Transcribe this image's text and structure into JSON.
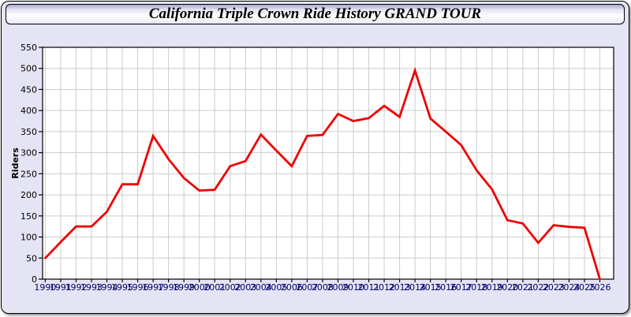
{
  "window": {
    "title": "California Triple Crown Ride History GRAND TOUR"
  },
  "chart_data": {
    "type": "line",
    "title": "California Triple Crown Ride History GRAND TOUR",
    "xlabel": "",
    "ylabel": "Riders",
    "ylim": [
      0,
      550
    ],
    "ytick_interval": 50,
    "grid": true,
    "legend_position": "none",
    "x": [
      1990,
      1991,
      1992,
      1993,
      1994,
      1995,
      1996,
      1997,
      1998,
      1999,
      2000,
      2001,
      2002,
      2003,
      2004,
      2005,
      2006,
      2007,
      2008,
      2009,
      2010,
      2011,
      2012,
      2013,
      2014,
      2015,
      2016,
      2017,
      2018,
      2019,
      2020,
      2021,
      2022,
      2023,
      2024,
      2025,
      2026
    ],
    "series": [
      {
        "name": "Riders",
        "values": [
          50,
          88,
          125,
          125,
          160,
          225,
          225,
          340,
          285,
          240,
          210,
          212,
          268,
          280,
          343,
          305,
          268,
          340,
          342,
          392,
          375,
          382,
          411,
          385,
          495,
          381,
          350,
          318,
          258,
          213,
          140,
          132,
          86,
          128,
          124,
          122,
          0
        ]
      }
    ],
    "theme": {
      "line_color": "#ee0000",
      "panel_background": "#e4e4f4",
      "plot_background": "#ffffff",
      "grid_color": "#cccccc",
      "axis_color": "#000000",
      "xtick_label_color": "#000066",
      "ytick_label_color": "#000000"
    }
  }
}
